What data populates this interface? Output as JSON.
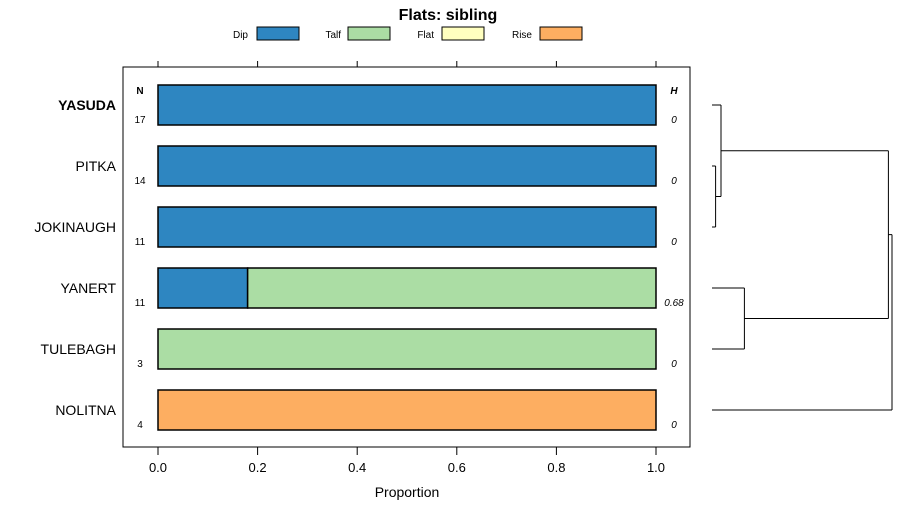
{
  "chart_data": {
    "type": "bar",
    "orientation": "horizontal-stacked",
    "title": "Flats: sibling",
    "xlabel": "Proportion",
    "ylabel": "",
    "xlim": [
      0,
      1
    ],
    "xticks": [
      "0.0",
      "0.2",
      "0.4",
      "0.6",
      "0.8",
      "1.0"
    ],
    "xtick_values": [
      0,
      0.2,
      0.4,
      0.6,
      0.8,
      1.0
    ],
    "legend": [
      {
        "name": "Dip",
        "color": "#2e86c1"
      },
      {
        "name": "Talf",
        "color": "#abdda4"
      },
      {
        "name": "Flat",
        "color": "#ffffbf"
      },
      {
        "name": "Rise",
        "color": "#fdae61"
      }
    ],
    "header_n": "N",
    "header_h": "H",
    "categories": [
      "YASUDA",
      "PITKA",
      "JOKINAUGH",
      "YANERT",
      "TULEBAGH",
      "NOLITNA"
    ],
    "bold_category": "YASUDA",
    "n": [
      "17",
      "14",
      "11",
      "11",
      "3",
      "4"
    ],
    "h": [
      "0",
      "0",
      "0",
      "0.68",
      "0",
      "0"
    ],
    "series": [
      {
        "name": "Dip",
        "values": [
          1.0,
          1.0,
          1.0,
          0.18,
          0.0,
          0.0
        ]
      },
      {
        "name": "Talf",
        "values": [
          0.0,
          0.0,
          0.0,
          0.82,
          1.0,
          0.0
        ]
      },
      {
        "name": "Flat",
        "values": [
          0.0,
          0.0,
          0.0,
          0.0,
          0.0,
          0.0
        ]
      },
      {
        "name": "Rise",
        "values": [
          0.0,
          0.0,
          0.0,
          0.0,
          0.0,
          1.0
        ]
      }
    ],
    "dendrogram": {
      "leaves": [
        "YASUDA",
        "PITKA",
        "JOKINAUGH",
        "YANERT",
        "TULEBAGH",
        "NOLITNA"
      ],
      "merges": [
        {
          "a": "PITKA",
          "b": "JOKINAUGH",
          "height": 0.02
        },
        {
          "a": "YASUDA",
          "b": "PITKA+JOKINAUGH",
          "height": 0.05
        },
        {
          "a": "YANERT",
          "b": "TULEBAGH",
          "height": 0.18
        },
        {
          "a": "YASUDA+PITKA+JOKINAUGH",
          "b": "YANERT+TULEBAGH",
          "height": 0.98
        },
        {
          "a": "ALL5",
          "b": "NOLITNA",
          "height": 1.0
        }
      ]
    }
  }
}
